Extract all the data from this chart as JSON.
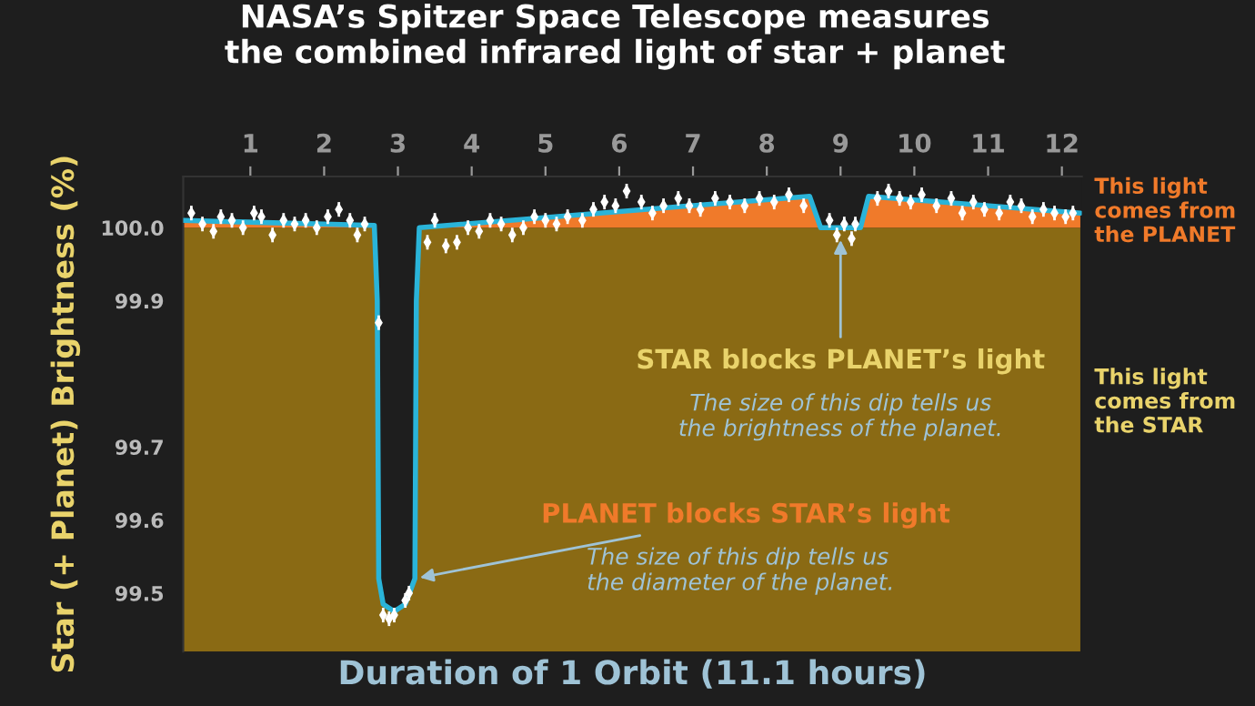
{
  "chart_data": {
    "type": "scatter",
    "title": "NASA’s Spitzer Space Telescope measures\nthe combined infrared light of star + planet",
    "xlabel": "Duration of 1 Orbit (11.1 hours)",
    "ylabel": "Star (+ Planet) Brightness (%)",
    "xlim": [
      0.09,
      12.27
    ],
    "xticks": [
      1,
      2,
      3,
      4,
      5,
      6,
      7,
      8,
      9,
      10,
      11,
      12
    ],
    "ylim": [
      99.42,
      100.07
    ],
    "yticks": [
      {
        "value": 100.0,
        "label": "100.0"
      },
      99.9,
      99.7,
      99.6,
      99.5
    ],
    "grid": false,
    "legend": false,
    "bands": [
      {
        "axis": "y",
        "from": 99.42,
        "to": 100.0,
        "color": "#8a6a14"
      },
      {
        "axis": "y",
        "from": 100.0,
        "to": 100.07,
        "color": "#f07a2a"
      }
    ],
    "series": [
      {
        "type": "line",
        "color": "#2ab4d9",
        "x": [
          0.09,
          2.68,
          2.72,
          2.74,
          2.8,
          2.95,
          3.1,
          3.23,
          3.25,
          3.29,
          5.74,
          8.58,
          8.73,
          9.27,
          9.38,
          12.25
        ],
        "values": [
          100.01,
          100.003,
          99.9,
          99.52,
          99.485,
          99.475,
          99.485,
          99.52,
          99.9,
          100.0,
          100.02,
          100.043,
          100.0,
          100.0,
          100.043,
          100.02
        ]
      },
      {
        "color": "#ffffff",
        "marker": "diamond",
        "x": [
          0.2,
          0.35,
          0.5,
          0.6,
          0.75,
          0.9,
          1.05,
          1.15,
          1.3,
          1.45,
          1.6,
          1.75,
          1.9,
          2.05,
          2.2,
          2.35,
          2.45,
          2.55,
          2.74,
          2.8,
          2.88,
          2.95,
          3.1,
          3.15,
          3.4,
          3.5,
          3.65,
          3.8,
          3.95,
          4.1,
          4.25,
          4.4,
          4.55,
          4.7,
          4.85,
          5.0,
          5.15,
          5.3,
          5.5,
          5.65,
          5.8,
          5.95,
          6.1,
          6.3,
          6.45,
          6.6,
          6.8,
          6.95,
          7.1,
          7.3,
          7.5,
          7.7,
          7.9,
          8.1,
          8.3,
          8.5,
          8.85,
          8.95,
          9.05,
          9.15,
          9.2,
          9.5,
          9.65,
          9.8,
          9.95,
          10.1,
          10.3,
          10.5,
          10.65,
          10.8,
          10.95,
          11.15,
          11.3,
          11.45,
          11.6,
          11.75,
          11.9,
          12.05,
          12.15
        ],
        "values": [
          100.02,
          100.005,
          99.995,
          100.015,
          100.01,
          100.0,
          100.02,
          100.015,
          99.99,
          100.01,
          100.005,
          100.01,
          100.0,
          100.015,
          100.025,
          100.01,
          99.99,
          100.005,
          99.87,
          99.47,
          99.465,
          99.47,
          99.49,
          99.5,
          99.98,
          100.01,
          99.975,
          99.98,
          100.0,
          99.995,
          100.01,
          100.005,
          99.99,
          100.0,
          100.015,
          100.01,
          100.005,
          100.015,
          100.01,
          100.025,
          100.035,
          100.03,
          100.05,
          100.035,
          100.02,
          100.03,
          100.04,
          100.03,
          100.025,
          100.04,
          100.035,
          100.03,
          100.04,
          100.035,
          100.045,
          100.03,
          100.01,
          99.99,
          100.005,
          99.985,
          100.005,
          100.04,
          100.05,
          100.04,
          100.035,
          100.045,
          100.03,
          100.04,
          100.02,
          100.035,
          100.025,
          100.02,
          100.035,
          100.03,
          100.015,
          100.025,
          100.02,
          100.015,
          100.02
        ],
        "errors": [
          0.01,
          0.01,
          0.01,
          0.01,
          0.01,
          0.01,
          0.01,
          0.01,
          0.01,
          0.01,
          0.01,
          0.01,
          0.01,
          0.01,
          0.01,
          0.01,
          0.01,
          0.01,
          0.01,
          0.01,
          0.01,
          0.01,
          0.01,
          0.01,
          0.01,
          0.01,
          0.01,
          0.01,
          0.01,
          0.01,
          0.01,
          0.01,
          0.01,
          0.01,
          0.01,
          0.01,
          0.01,
          0.01,
          0.01,
          0.01,
          0.01,
          0.01,
          0.01,
          0.01,
          0.01,
          0.01,
          0.01,
          0.01,
          0.01,
          0.01,
          0.01,
          0.01,
          0.01,
          0.01,
          0.01,
          0.01,
          0.01,
          0.01,
          0.01,
          0.01,
          0.01,
          0.01,
          0.01,
          0.01,
          0.01,
          0.01,
          0.01,
          0.01,
          0.01,
          0.01,
          0.01,
          0.01,
          0.01,
          0.01,
          0.01,
          0.01,
          0.01,
          0.01,
          0.01
        ]
      }
    ],
    "annotations": [
      {
        "text": "PLANET blocks STAR’s light\nThe size of this dip tells us\nthe diameter of the planet.",
        "x": 3.23,
        "y": 99.52
      },
      {
        "text": "STAR blocks PLANET’s light\nThe size of this dip tells us\nthe brightness of the planet.",
        "x": 9.0,
        "y": 99.99
      },
      "This light\ncomes from\nthe PLANET",
      "This light\ncomes from\nthe STAR"
    ]
  }
}
